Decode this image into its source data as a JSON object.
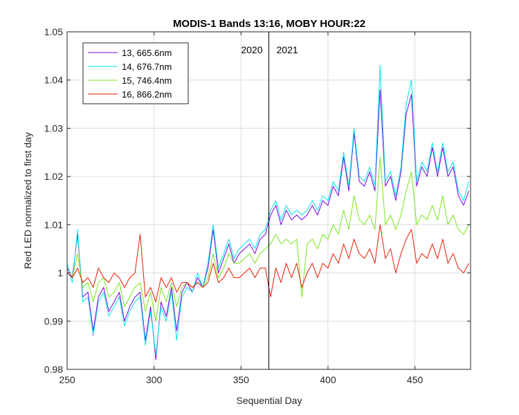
{
  "chart_data": {
    "type": "line",
    "title": "MODIS-1 Bands 13:16, MOBY HOUR:22",
    "xlabel": "Sequential Day",
    "ylabel": "Red LED normalized to first day",
    "xlim": [
      250,
      482
    ],
    "ylim": [
      0.98,
      1.05
    ],
    "xticks": [
      250,
      300,
      350,
      400,
      450
    ],
    "yticks": [
      0.98,
      0.99,
      1,
      1.01,
      1.02,
      1.03,
      1.04,
      1.05
    ],
    "ytick_labels": [
      "0.98",
      "0.99",
      "1",
      "1.01",
      "1.02",
      "1.03",
      "1.04",
      "1.05"
    ],
    "grid": true,
    "legend_position": "top-left",
    "vline": {
      "x": 366,
      "left_label": "2020",
      "right_label": "2021"
    },
    "series": [
      {
        "name": "13, 665.6nm",
        "color": "#7a00e6",
        "x": [
          250,
          253,
          256,
          259,
          262,
          265,
          268,
          271,
          274,
          277,
          280,
          283,
          286,
          289,
          292,
          295,
          298,
          301,
          304,
          307,
          310,
          313,
          316,
          319,
          322,
          325,
          328,
          331,
          334,
          337,
          340,
          343,
          346,
          349,
          352,
          355,
          358,
          361,
          364,
          367,
          370,
          373,
          376,
          379,
          382,
          385,
          388,
          391,
          394,
          397,
          400,
          403,
          406,
          409,
          412,
          415,
          418,
          421,
          424,
          427,
          430,
          433,
          436,
          439,
          442,
          445,
          448,
          451,
          454,
          457,
          460,
          463,
          466,
          469,
          472,
          475,
          478,
          481
        ],
        "y": [
          1.001,
          0.999,
          1.008,
          0.995,
          0.996,
          0.988,
          0.995,
          0.997,
          0.992,
          0.994,
          0.996,
          0.99,
          0.993,
          0.995,
          0.996,
          0.986,
          0.993,
          0.982,
          0.994,
          0.991,
          0.997,
          0.988,
          0.996,
          0.998,
          0.996,
          0.999,
          0.997,
          1.001,
          1.009,
          1.0,
          1.003,
          1.006,
          1.002,
          1.004,
          1.005,
          1.006,
          1.004,
          1.007,
          1.008,
          1.012,
          1.014,
          1.01,
          1.013,
          1.011,
          1.012,
          1.011,
          1.012,
          1.014,
          1.012,
          1.015,
          1.014,
          1.018,
          1.016,
          1.024,
          1.017,
          1.029,
          1.019,
          1.018,
          1.021,
          1.017,
          1.038,
          1.018,
          1.02,
          1.015,
          1.021,
          1.033,
          1.037,
          1.018,
          1.022,
          1.02,
          1.026,
          1.02,
          1.026,
          1.02,
          1.022,
          1.016,
          1.014,
          1.017
        ]
      },
      {
        "name": "14, 676.7nm",
        "color": "#00e6e6",
        "x": [
          250,
          253,
          256,
          259,
          262,
          265,
          268,
          271,
          274,
          277,
          280,
          283,
          286,
          289,
          292,
          295,
          298,
          301,
          304,
          307,
          310,
          313,
          316,
          319,
          322,
          325,
          328,
          331,
          334,
          337,
          340,
          343,
          346,
          349,
          352,
          355,
          358,
          361,
          364,
          367,
          370,
          373,
          376,
          379,
          382,
          385,
          388,
          391,
          394,
          397,
          400,
          403,
          406,
          409,
          412,
          415,
          418,
          421,
          424,
          427,
          430,
          433,
          436,
          439,
          442,
          445,
          448,
          451,
          454,
          457,
          460,
          463,
          466,
          469,
          472,
          475,
          478,
          481
        ],
        "y": [
          1.002,
          0.998,
          1.009,
          0.994,
          0.995,
          0.987,
          0.994,
          0.996,
          0.991,
          0.993,
          0.995,
          0.989,
          0.992,
          0.994,
          0.995,
          0.985,
          0.992,
          0.983,
          0.993,
          0.99,
          0.996,
          0.986,
          0.995,
          0.997,
          0.996,
          1.0,
          0.997,
          1.002,
          1.01,
          1.001,
          1.004,
          1.007,
          1.003,
          1.005,
          1.006,
          1.007,
          1.005,
          1.008,
          1.009,
          1.013,
          1.015,
          1.011,
          1.014,
          1.012,
          1.013,
          1.012,
          1.013,
          1.015,
          1.013,
          1.016,
          1.015,
          1.019,
          1.017,
          1.025,
          1.018,
          1.03,
          1.02,
          1.019,
          1.022,
          1.018,
          1.043,
          1.019,
          1.021,
          1.016,
          1.022,
          1.035,
          1.04,
          1.019,
          1.023,
          1.021,
          1.027,
          1.021,
          1.027,
          1.021,
          1.023,
          1.017,
          1.015,
          1.019
        ]
      },
      {
        "name": "15, 746.4nm",
        "color": "#77e61a",
        "x": [
          250,
          253,
          256,
          259,
          262,
          265,
          268,
          271,
          274,
          277,
          280,
          283,
          286,
          289,
          292,
          295,
          298,
          301,
          304,
          307,
          310,
          313,
          316,
          319,
          322,
          325,
          328,
          331,
          334,
          337,
          340,
          343,
          346,
          349,
          352,
          355,
          358,
          361,
          364,
          367,
          370,
          373,
          376,
          379,
          382,
          385,
          388,
          391,
          394,
          397,
          400,
          403,
          406,
          409,
          412,
          415,
          418,
          421,
          424,
          427,
          430,
          433,
          436,
          439,
          442,
          445,
          448,
          451,
          454,
          457,
          460,
          463,
          466,
          469,
          472,
          475,
          478,
          481
        ],
        "y": [
          1.0,
          0.999,
          1.004,
          0.997,
          0.998,
          0.994,
          0.998,
          0.999,
          0.995,
          0.996,
          0.998,
          0.993,
          0.995,
          0.997,
          0.998,
          0.992,
          0.996,
          0.99,
          0.997,
          0.994,
          0.998,
          0.993,
          0.997,
          0.998,
          0.997,
          0.998,
          0.997,
          0.999,
          1.004,
          0.999,
          1.001,
          1.004,
          1.002,
          1.002,
          1.003,
          1.004,
          1.002,
          1.004,
          1.005,
          1.006,
          1.008,
          1.006,
          1.007,
          1.006,
          1.007,
          0.995,
          1.006,
          1.007,
          1.005,
          1.008,
          1.007,
          1.01,
          1.008,
          1.013,
          1.009,
          1.016,
          1.011,
          1.01,
          1.012,
          1.009,
          1.024,
          1.01,
          1.012,
          1.009,
          1.012,
          1.017,
          1.021,
          1.01,
          1.012,
          1.011,
          1.014,
          1.011,
          1.016,
          1.01,
          1.012,
          1.009,
          1.008,
          1.01
        ]
      },
      {
        "name": "16, 866.2nm",
        "color": "#e61a00",
        "x": [
          250,
          253,
          256,
          259,
          262,
          265,
          268,
          271,
          274,
          277,
          280,
          283,
          286,
          289,
          292,
          295,
          298,
          301,
          304,
          307,
          310,
          313,
          316,
          319,
          322,
          325,
          328,
          331,
          334,
          337,
          340,
          343,
          346,
          349,
          352,
          355,
          358,
          361,
          364,
          367,
          370,
          373,
          376,
          379,
          382,
          385,
          388,
          391,
          394,
          397,
          400,
          403,
          406,
          409,
          412,
          415,
          418,
          421,
          424,
          427,
          430,
          433,
          436,
          439,
          442,
          445,
          448,
          451,
          454,
          457,
          460,
          463,
          466,
          469,
          472,
          475,
          478,
          481
        ],
        "y": [
          1.0,
          0.999,
          1.001,
          0.998,
          0.999,
          0.997,
          1.001,
          0.999,
          0.998,
          1.0,
          0.999,
          0.997,
          0.999,
          1.0,
          1.008,
          0.995,
          0.997,
          0.994,
          0.999,
          0.997,
          0.999,
          0.996,
          0.998,
          0.998,
          0.997,
          0.998,
          0.997,
          0.998,
          1.002,
          0.998,
          0.999,
          1.001,
          0.999,
          0.999,
          1.0,
          1.001,
          0.999,
          1.001,
          1.001,
          0.995,
          1.001,
          0.998,
          1.002,
          0.999,
          1.002,
          0.997,
          1.0,
          1.002,
          0.999,
          1.002,
          1.001,
          1.004,
          1.002,
          1.006,
          1.003,
          1.007,
          1.004,
          1.003,
          1.005,
          1.002,
          1.01,
          1.003,
          1.005,
          1.0,
          1.004,
          1.007,
          1.009,
          1.002,
          1.004,
          1.003,
          1.006,
          1.003,
          1.007,
          1.002,
          1.004,
          1.001,
          1.0,
          1.002
        ]
      }
    ]
  }
}
